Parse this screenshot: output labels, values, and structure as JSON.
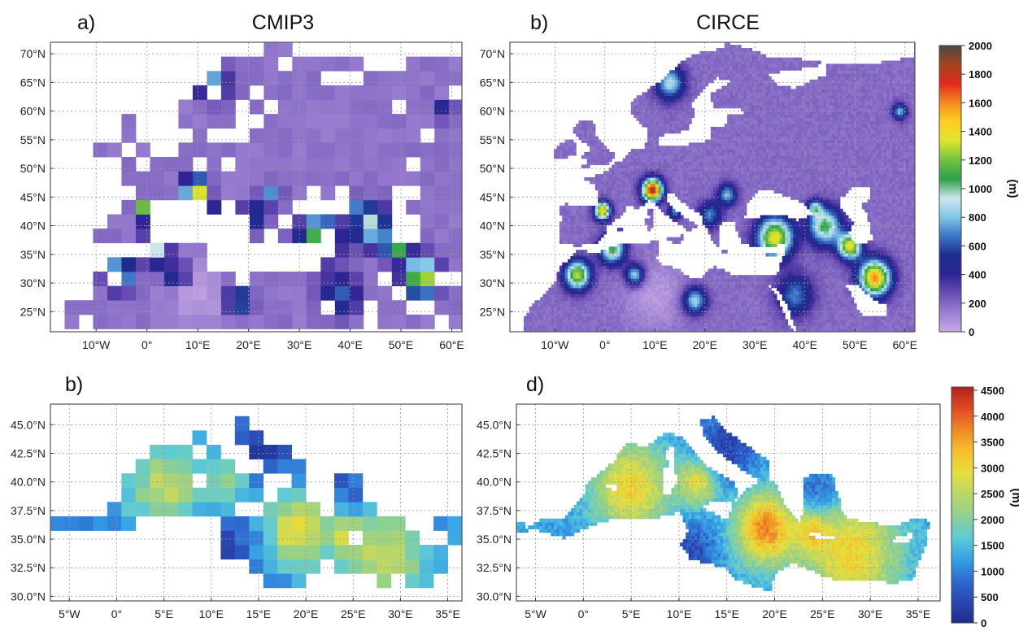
{
  "panels": [
    {
      "id": "a",
      "label": "a)",
      "title": "CMIP3",
      "kind": "cells",
      "x_ticks": [
        "10°W",
        "0°",
        "10°E",
        "20°E",
        "30°E",
        "40°E",
        "50°E",
        "60°E"
      ],
      "y_ticks": [
        "70°N",
        "65°N",
        "60°N",
        "55°N",
        "50°N",
        "45°N",
        "40°N",
        "35°N",
        "30°N",
        "25°N"
      ],
      "colorbar": "elevation"
    },
    {
      "id": "b",
      "label": "b)",
      "title": "CIRCE",
      "kind": "field",
      "x_ticks": [
        "10°W",
        "0°",
        "10°E",
        "20°E",
        "30°E",
        "40°E",
        "50°E",
        "60°E"
      ],
      "y_ticks": [
        "70°N",
        "65°N",
        "60°N",
        "55°N",
        "50°N",
        "45°N",
        "40°N",
        "35°N",
        "30°N",
        "25°N"
      ],
      "colorbar": "elevation"
    },
    {
      "id": "c",
      "label": "b)",
      "title": "",
      "kind": "cells-sea",
      "x_ticks": [
        "5°W",
        "0°",
        "5°E",
        "10°E",
        "15°E",
        "20°E",
        "25°E",
        "30°E",
        "35°E"
      ],
      "y_ticks": [
        "45.0°N",
        "42.5°N",
        "40.0°N",
        "37.5°N",
        "35.0°N",
        "32.5°N",
        "30.0°N"
      ],
      "colorbar": "depth"
    },
    {
      "id": "d",
      "label": "d)",
      "title": "",
      "kind": "field-sea",
      "x_ticks": [
        "5°W",
        "0°",
        "5°E",
        "10°E",
        "15°E",
        "20°E",
        "25°E",
        "30°E",
        "35°E"
      ],
      "y_ticks": [
        "45.0°N",
        "42.5°N",
        "40.0°N",
        "37.5°N",
        "35.0°N",
        "32.5°N",
        "30.0°N"
      ],
      "colorbar": "depth"
    }
  ],
  "colorbars": {
    "elevation": {
      "unit": "(m)",
      "ticks": [
        "2000",
        "1800",
        "1600",
        "1400",
        "1200",
        "1000",
        "800",
        "600",
        "400",
        "200",
        "0"
      ],
      "colors": [
        "#c9a9e6",
        "#9b80d2",
        "#6a4fb3",
        "#2f2494",
        "#1b2e8c",
        "#3a72c4",
        "#7fc6e6",
        "#cfe6ee",
        "#2aa24a",
        "#71c243",
        "#dde52a",
        "#ffcf21",
        "#f68a1e",
        "#e22a1e",
        "#a3431e",
        "#4a4a44"
      ]
    },
    "depth": {
      "unit": "(m)",
      "ticks": [
        "4500",
        "4000",
        "3500",
        "3000",
        "2500",
        "2000",
        "1500",
        "1000",
        "500",
        "0"
      ],
      "colors": [
        "#1c2c8c",
        "#2a48b2",
        "#2f6bd1",
        "#36a4e6",
        "#5fcbd6",
        "#8fd08f",
        "#b9d66a",
        "#e6de3d",
        "#f5c02d",
        "#f08a25",
        "#e04a23",
        "#b3221d"
      ]
    }
  }
}
